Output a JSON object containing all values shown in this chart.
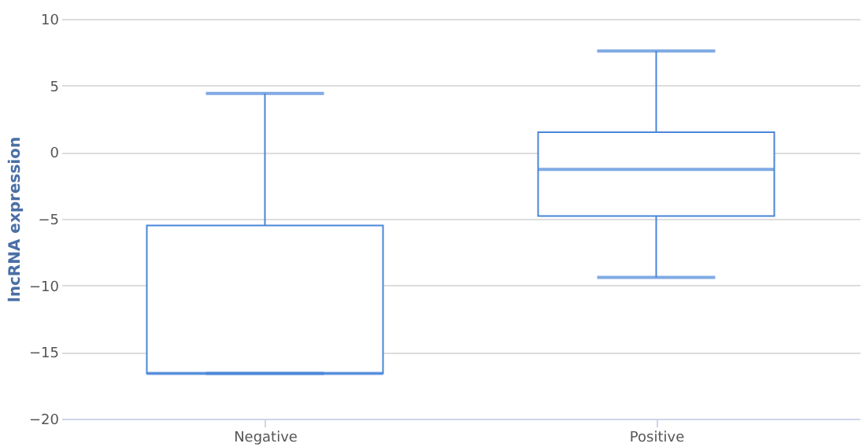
{
  "chart_data": {
    "type": "box",
    "ylabel": "lncRNA expression",
    "categories": [
      "Negative",
      "Positive"
    ],
    "boxes": [
      {
        "low": -16.6,
        "q1": -16.6,
        "median": -16.6,
        "q3": -5.5,
        "high": 4.4
      },
      {
        "low": -9.4,
        "q1": -4.8,
        "median": -1.3,
        "q3": 1.5,
        "high": 7.6
      }
    ],
    "color": "#4a86d8",
    "ylim": [
      -20,
      10
    ],
    "yticks": [
      -20,
      -15,
      -10,
      -5,
      0,
      5,
      10
    ],
    "grid": "y"
  }
}
